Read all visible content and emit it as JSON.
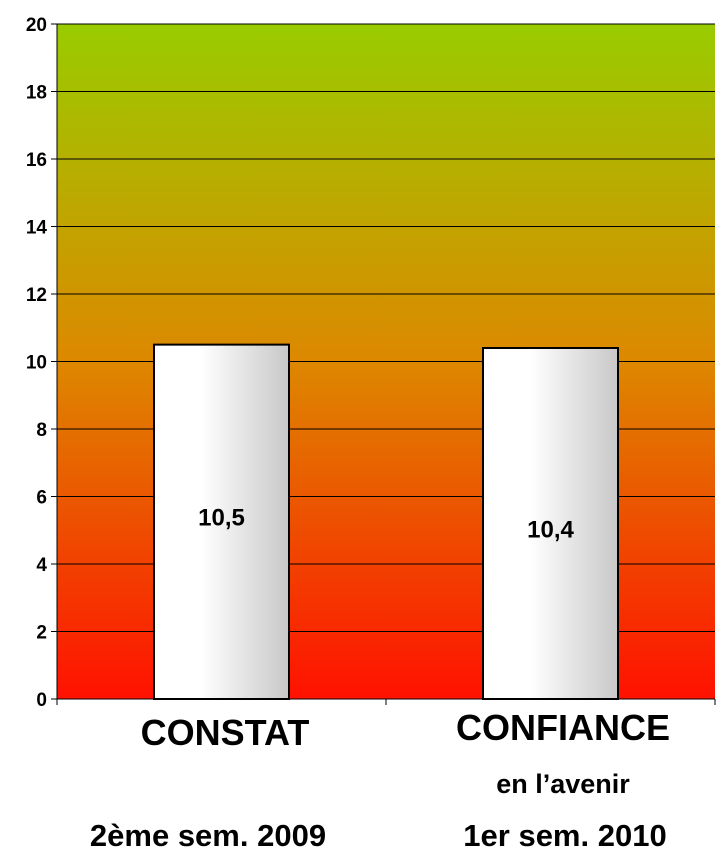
{
  "chart_data": {
    "type": "bar",
    "categories": [
      "CONSTAT",
      "CONFIANCE"
    ],
    "category_sublabels": [
      "",
      "en l’avenir"
    ],
    "periods": [
      "2ème sem. 2009",
      "1er sem. 2010"
    ],
    "values": [
      10.5,
      10.4
    ],
    "value_labels": [
      "10,5",
      "10,4"
    ],
    "title": "",
    "xlabel": "",
    "ylabel": "",
    "ylim": [
      0,
      20
    ],
    "yticks": [
      0,
      2,
      4,
      6,
      8,
      10,
      12,
      14,
      16,
      18,
      20
    ],
    "ytick_labels": [
      "0",
      "2",
      "4",
      "6",
      "8",
      "10",
      "12",
      "14",
      "16",
      "18",
      "20"
    ],
    "grid": true,
    "legend": "none",
    "colors": {
      "background_top": "#99cc00",
      "background_mid": "#dd8800",
      "background_bottom": "#ff1100",
      "bar_fill_light": "#ffffff",
      "bar_fill_dark": "#c8c8c8",
      "gridline": "#000000"
    }
  }
}
